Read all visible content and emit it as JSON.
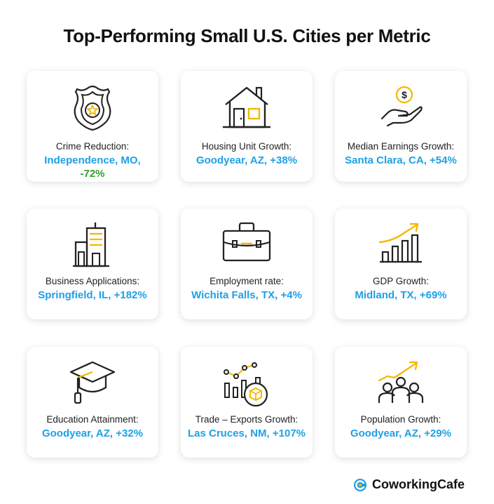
{
  "title": "Top-Performing Small U.S. Cities per Metric",
  "colors": {
    "accent": "#1ea0e6",
    "negative": "#2e9e2e",
    "icon_yellow": "#f5b800",
    "icon_line": "#222222"
  },
  "cards": [
    {
      "icon": "police-badge-icon",
      "label": "Crime Reduction:",
      "value_city": "Independence, MO,",
      "value_change": "-72%"
    },
    {
      "icon": "house-icon",
      "label": "Housing Unit Growth:",
      "value": "Goodyear, AZ, +38%"
    },
    {
      "icon": "hand-coin-icon",
      "label": "Median Earnings Growth:",
      "value": "Santa Clara, CA, +54%"
    },
    {
      "icon": "buildings-icon",
      "label": "Business Applications:",
      "value": "Springfield, IL, +182%"
    },
    {
      "icon": "briefcase-icon",
      "label": "Employment rate:",
      "value": "Wichita Falls, TX, +4%"
    },
    {
      "icon": "growth-chart-icon",
      "label": "GDP Growth:",
      "value": "Midland, TX, +69%"
    },
    {
      "icon": "graduation-cap-icon",
      "label": "Education Attainment:",
      "value": "Goodyear, AZ, +32%"
    },
    {
      "icon": "trade-export-icon",
      "label": "Trade – Exports Growth:",
      "value": "Las Cruces, NM, +107%"
    },
    {
      "icon": "population-growth-icon",
      "label": "Population Growth:",
      "value": "Goodyear, AZ, +29%"
    }
  ],
  "brand": {
    "name": "CoworkingCafe"
  }
}
